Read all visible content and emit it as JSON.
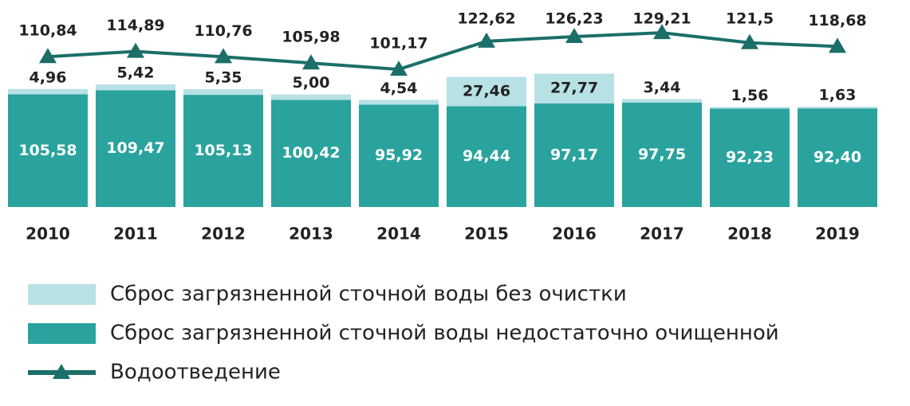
{
  "chart_data": {
    "type": "bar",
    "stacked": true,
    "categories": [
      "2010",
      "2011",
      "2012",
      "2013",
      "2014",
      "2015",
      "2016",
      "2017",
      "2018",
      "2019"
    ],
    "series": [
      {
        "name": "Сброс загрязненной сточной воды недостаточно очищенной",
        "color": "#2aa39e",
        "values": [
          105.58,
          109.47,
          105.13,
          100.42,
          95.92,
          94.44,
          97.17,
          97.75,
          92.23,
          92.4
        ],
        "value_labels": [
          "105,58",
          "109,47",
          "105,13",
          "100,42",
          "95,92",
          "94,44",
          "97,17",
          "97,75",
          "92,23",
          "92,40"
        ]
      },
      {
        "name": "Сброс загрязненной сточной воды без очистки",
        "color": "#b7e1e5",
        "values": [
          4.96,
          5.42,
          5.35,
          5.0,
          4.54,
          27.46,
          27.77,
          3.44,
          1.56,
          1.63
        ],
        "value_labels": [
          "4,96",
          "5,42",
          "5,35",
          "5,00",
          "4,54",
          "27,46",
          "27,77",
          "3,44",
          "1,56",
          "1,63"
        ]
      },
      {
        "name": "Водоотведение",
        "type": "line",
        "color": "#1b6f68",
        "values": [
          110.84,
          114.89,
          110.76,
          105.98,
          101.17,
          122.62,
          126.23,
          129.21,
          121.5,
          118.68
        ],
        "value_labels": [
          "110,84",
          "114,89",
          "110,76",
          "105,98",
          "101,17",
          "122,62",
          "126,23",
          "129,21",
          "121,5",
          "118,68"
        ]
      }
    ]
  }
}
